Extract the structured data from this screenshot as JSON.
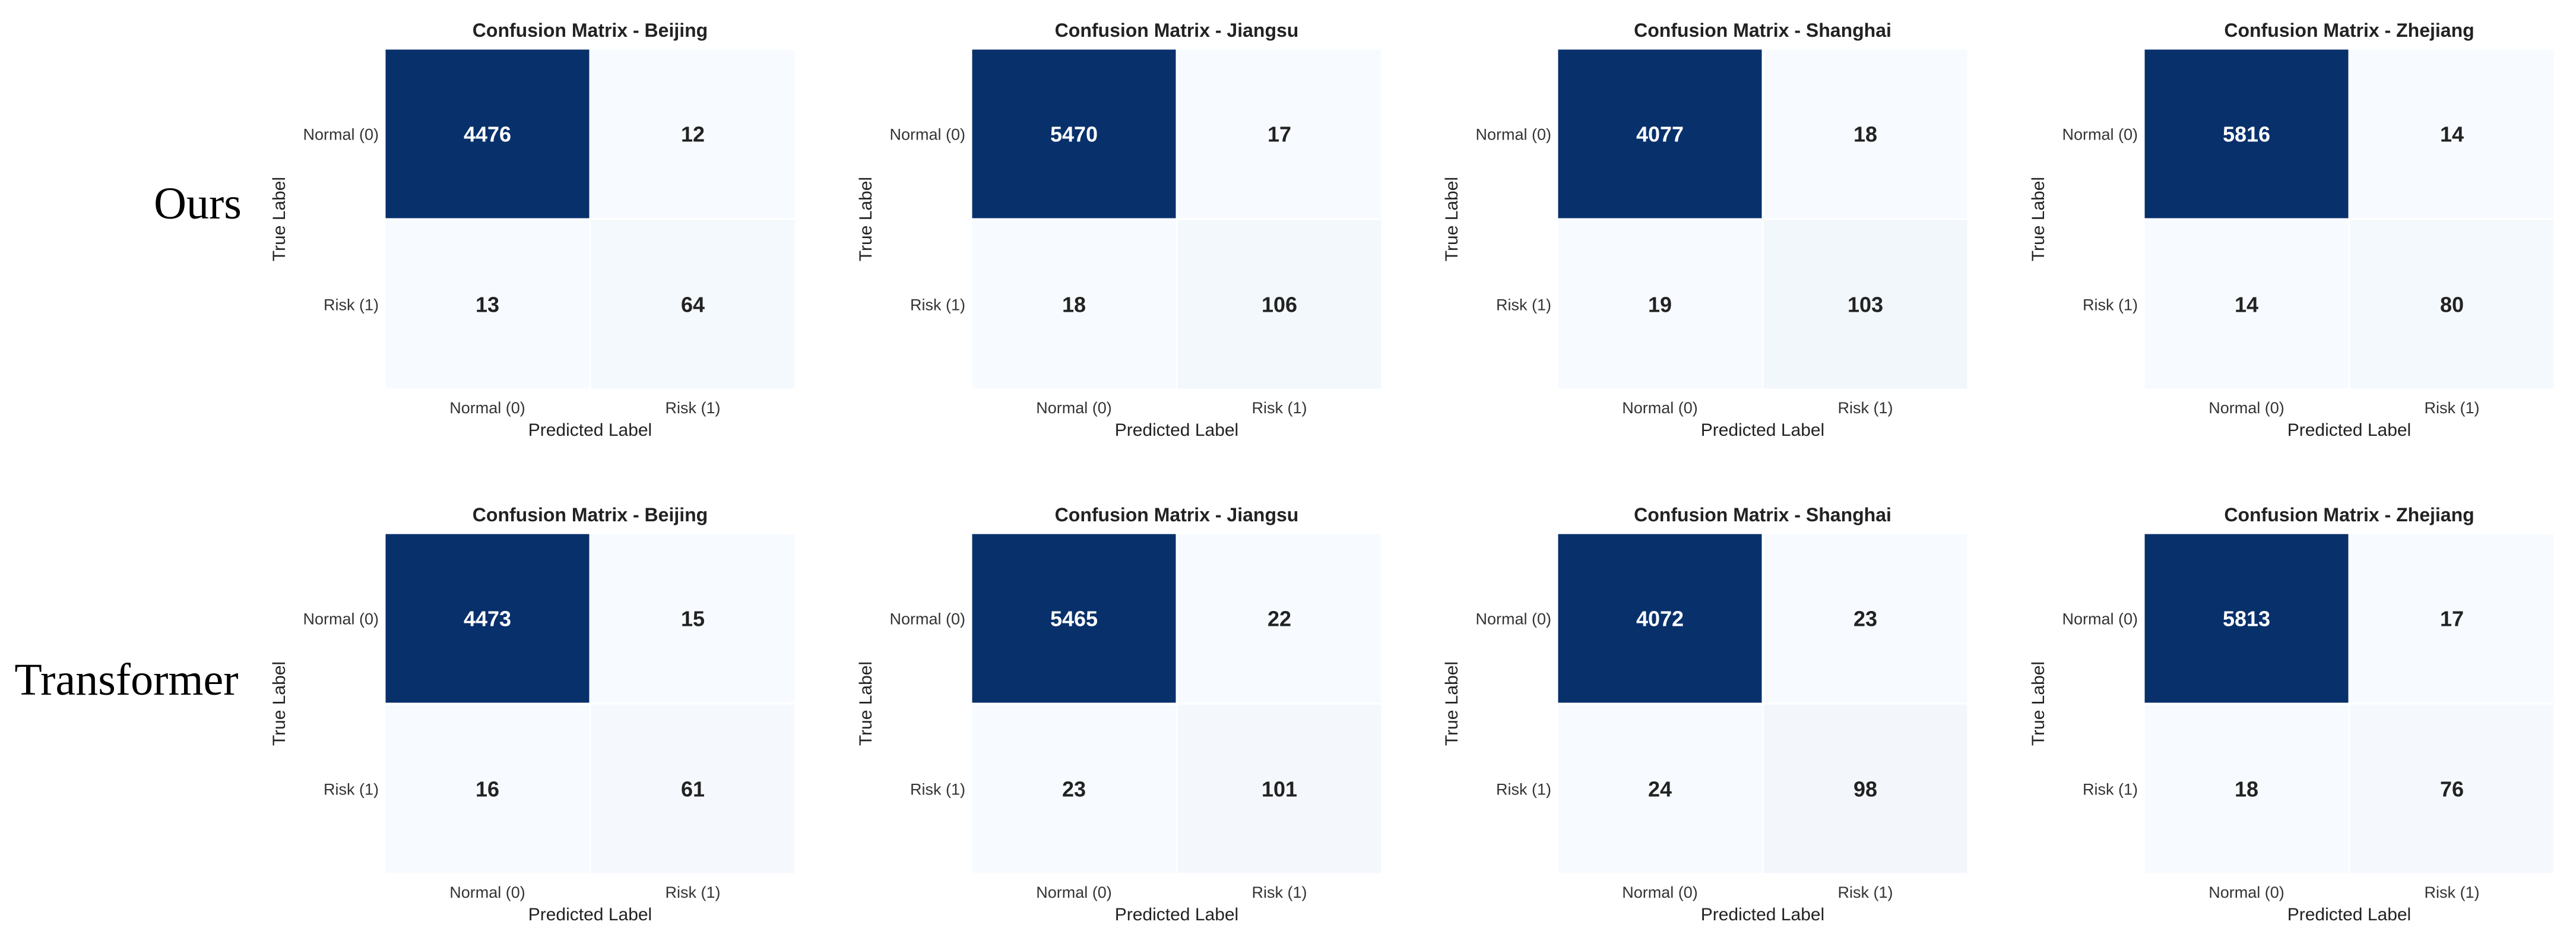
{
  "rows": [
    {
      "label": "Ours"
    },
    {
      "label": "Transformer"
    }
  ],
  "colors": {
    "cell_high": "#08306b",
    "cell_low": "#f7fbff",
    "text_on_dark": "#ffffff",
    "text_on_light": "#222222"
  },
  "chart_data": [
    {
      "type": "heatmap",
      "row": "Ours",
      "title": "Confusion Matrix - Beijing",
      "xlabel": "Predicted Label",
      "ylabel": "True Label",
      "x_ticks": [
        "Normal (0)",
        "Risk (1)"
      ],
      "y_ticks": [
        "Normal (0)",
        "Risk (1)"
      ],
      "values": [
        [
          4476,
          12
        ],
        [
          13,
          64
        ]
      ]
    },
    {
      "type": "heatmap",
      "row": "Ours",
      "title": "Confusion Matrix - Jiangsu",
      "xlabel": "Predicted Label",
      "ylabel": "True Label",
      "x_ticks": [
        "Normal (0)",
        "Risk (1)"
      ],
      "y_ticks": [
        "Normal (0)",
        "Risk (1)"
      ],
      "values": [
        [
          5470,
          17
        ],
        [
          18,
          106
        ]
      ]
    },
    {
      "type": "heatmap",
      "row": "Ours",
      "title": "Confusion Matrix - Shanghai",
      "xlabel": "Predicted Label",
      "ylabel": "True Label",
      "x_ticks": [
        "Normal (0)",
        "Risk (1)"
      ],
      "y_ticks": [
        "Normal (0)",
        "Risk (1)"
      ],
      "values": [
        [
          4077,
          18
        ],
        [
          19,
          103
        ]
      ]
    },
    {
      "type": "heatmap",
      "row": "Ours",
      "title": "Confusion Matrix - Zhejiang",
      "xlabel": "Predicted Label",
      "ylabel": "True Label",
      "x_ticks": [
        "Normal (0)",
        "Risk (1)"
      ],
      "y_ticks": [
        "Normal (0)",
        "Risk (1)"
      ],
      "values": [
        [
          5816,
          14
        ],
        [
          14,
          80
        ]
      ]
    },
    {
      "type": "heatmap",
      "row": "Transformer",
      "title": "Confusion Matrix - Beijing",
      "xlabel": "Predicted Label",
      "ylabel": "True Label",
      "x_ticks": [
        "Normal (0)",
        "Risk (1)"
      ],
      "y_ticks": [
        "Normal (0)",
        "Risk (1)"
      ],
      "values": [
        [
          4473,
          15
        ],
        [
          16,
          61
        ]
      ]
    },
    {
      "type": "heatmap",
      "row": "Transformer",
      "title": "Confusion Matrix - Jiangsu",
      "xlabel": "Predicted Label",
      "ylabel": "True Label",
      "x_ticks": [
        "Normal (0)",
        "Risk (1)"
      ],
      "y_ticks": [
        "Normal (0)",
        "Risk (1)"
      ],
      "values": [
        [
          5465,
          22
        ],
        [
          23,
          101
        ]
      ]
    },
    {
      "type": "heatmap",
      "row": "Transformer",
      "title": "Confusion Matrix - Shanghai",
      "xlabel": "Predicted Label",
      "ylabel": "True Label",
      "x_ticks": [
        "Normal (0)",
        "Risk (1)"
      ],
      "y_ticks": [
        "Normal (0)",
        "Risk (1)"
      ],
      "values": [
        [
          4072,
          23
        ],
        [
          24,
          98
        ]
      ]
    },
    {
      "type": "heatmap",
      "row": "Transformer",
      "title": "Confusion Matrix - Zhejiang",
      "xlabel": "Predicted Label",
      "ylabel": "True Label",
      "x_ticks": [
        "Normal (0)",
        "Risk (1)"
      ],
      "y_ticks": [
        "Normal (0)",
        "Risk (1)"
      ],
      "values": [
        [
          5813,
          17
        ],
        [
          18,
          76
        ]
      ]
    }
  ]
}
